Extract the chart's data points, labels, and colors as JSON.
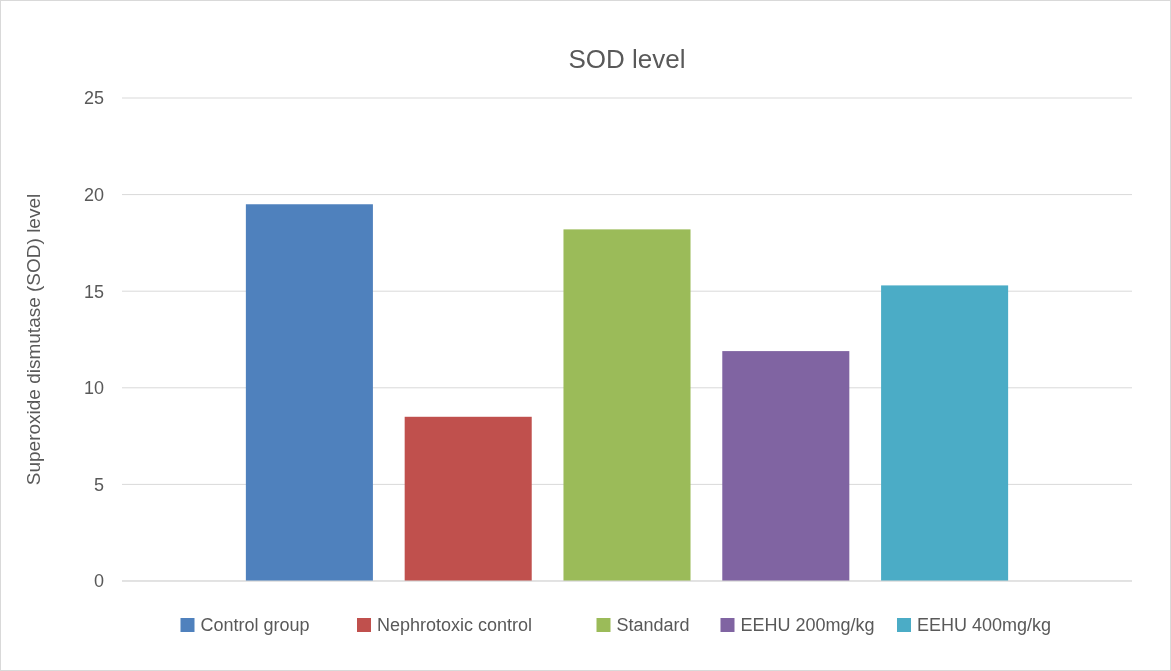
{
  "chart_data": {
    "type": "bar",
    "title": "SOD level",
    "ylabel": "Superoxide dismutase (SOD) level",
    "categories": [
      null
    ],
    "series": [
      {
        "name": "Control group",
        "color": "#4f81bd",
        "values": [
          19.5
        ]
      },
      {
        "name": "Nephrotoxic control",
        "color": "#c0504d",
        "values": [
          8.5
        ]
      },
      {
        "name": "Standard",
        "color": "#9bbb59",
        "values": [
          18.2
        ]
      },
      {
        "name": "EEHU 200mg/kg",
        "color": "#8064a2",
        "values": [
          11.9
        ]
      },
      {
        "name": "EEHU 400mg/kg",
        "color": "#4bacc6",
        "values": [
          15.3
        ]
      }
    ],
    "ylim": [
      0,
      25
    ],
    "yticks": [
      0,
      5,
      10,
      15,
      20,
      25
    ],
    "grid": "y",
    "legend": "bottom"
  }
}
